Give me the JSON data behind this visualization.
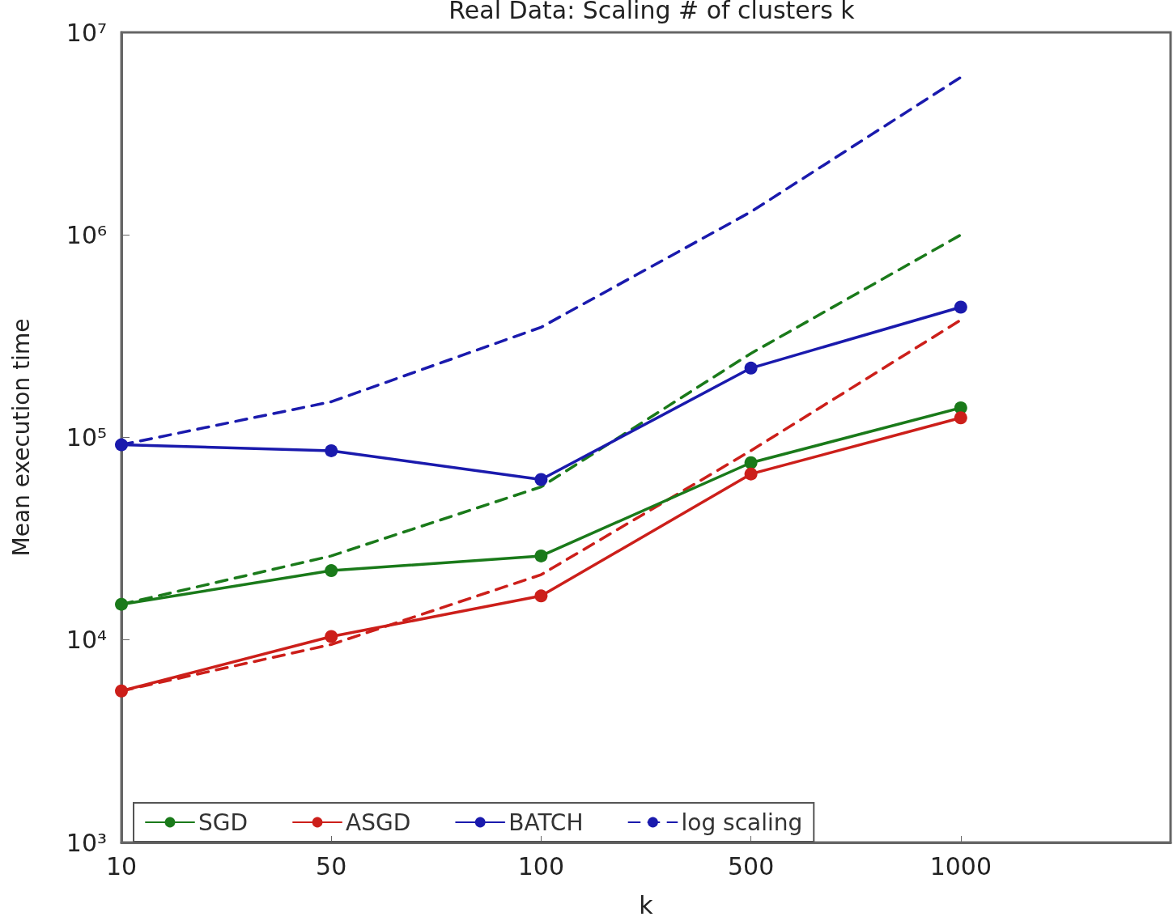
{
  "chart_data": {
    "type": "line",
    "title": "Real Data: Scaling # of clusters k",
    "xlabel": "k",
    "ylabel": "Mean execution time",
    "categories": [
      "10",
      "50",
      "100",
      "500",
      "1000",
      null
    ],
    "series": [
      {
        "name": "SGD",
        "color": "#1a7a1a",
        "marker": "circle",
        "line_style": "solid",
        "values": [
          15000,
          22000,
          26000,
          75000,
          140000,
          null
        ]
      },
      {
        "name": "ASGD",
        "color": "#cc1f1a",
        "marker": "circle",
        "line_style": "solid",
        "values": [
          5600,
          10400,
          16500,
          66000,
          125000,
          null
        ]
      },
      {
        "name": "BATCH",
        "color": "#1a1aad",
        "marker": "circle",
        "line_style": "solid",
        "values": [
          92000,
          86000,
          62000,
          220000,
          440000,
          null
        ]
      },
      {
        "name": "log scaling",
        "color": "#1a1aad",
        "marker": "none",
        "line_style": "dashed",
        "values": [
          92000,
          150000,
          350000,
          1300000,
          6000000,
          null
        ]
      },
      {
        "color": "#1a7a1a",
        "marker": "none",
        "line_style": "dashed",
        "values": [
          15000,
          26000,
          57000,
          260000,
          1000000,
          null
        ]
      },
      {
        "color": "#cc1f1a",
        "marker": "none",
        "line_style": "dashed",
        "values": [
          5600,
          9500,
          21000,
          86000,
          380000,
          null
        ]
      }
    ],
    "log": "y",
    "ylim": [
      1000,
      10000000
    ],
    "yticks": [
      {
        "value": 1000,
        "label": "10³"
      },
      {
        "value": 10000,
        "label": "10⁴"
      },
      {
        "value": 100000,
        "label": "10⁵"
      },
      {
        "value": 1000000,
        "label": "10⁶"
      },
      {
        "value": 10000000,
        "label": "10⁷"
      }
    ],
    "grid": false,
    "legend": "bottom left"
  }
}
